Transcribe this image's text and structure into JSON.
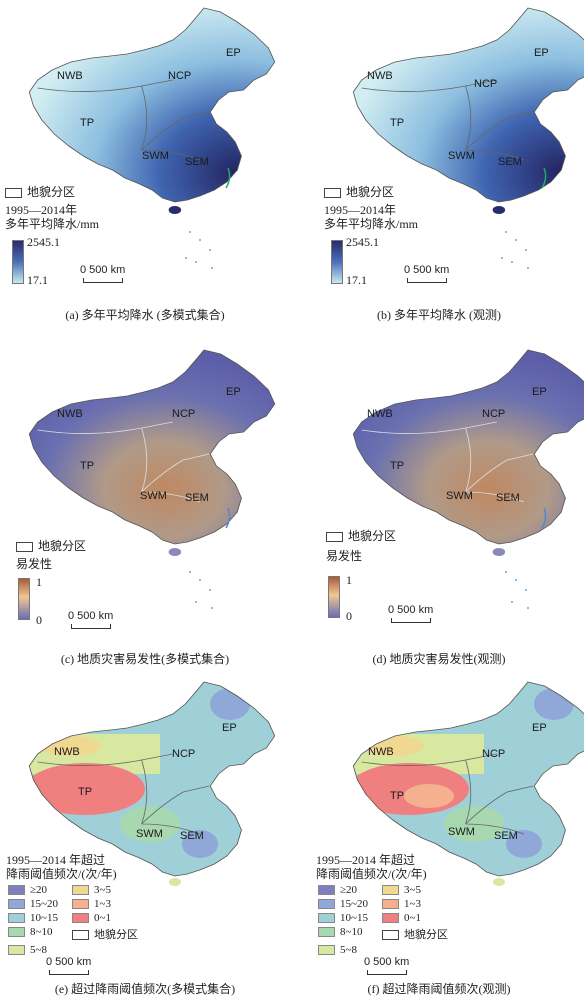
{
  "regions": [
    "NWB",
    "NCP",
    "EP",
    "TP",
    "SWM",
    "SEM"
  ],
  "legend_box_label": "地貌分区",
  "scale_label": "0   500 km",
  "colors": {
    "precip": [
      "#c7e9f0",
      "#6fa8d6",
      "#3b5ba9",
      "#2a2a6e"
    ],
    "suscept": [
      "#6b6bb8",
      "#9a9ac8",
      "#f0c890",
      "#a85a3a"
    ],
    "freq": [
      "#7f7fc0",
      "#8fa8d8",
      "#9fd0d8",
      "#a8d8b0",
      "#d8e8a0",
      "#f0d890",
      "#f5b090",
      "#f08080"
    ]
  },
  "panels": [
    {
      "caption": "(a) 多年平均降水 (多模式集合)",
      "legend_title": "1995—2014年\n多年平均降水/mm",
      "max": "2545.1",
      "min": "17.1"
    },
    {
      "caption": "(b) 多年平均降水 (观测)",
      "legend_title": "1995—2014年\n多年平均降水/mm",
      "max": "2545.1",
      "min": "17.1"
    },
    {
      "caption": "(c) 地质灾害易发性(多模式集合)",
      "legend_title": "易发性",
      "max": "1",
      "min": "0"
    },
    {
      "caption": "(d) 地质灾害易发性(观测)",
      "legend_title": "易发性",
      "max": "1",
      "min": "0"
    },
    {
      "caption": "(e) 超过降雨阈值频次(多模式集合)",
      "legend_title": "1995—2014 年超过\n降雨阈值频次/(次/年)"
    },
    {
      "caption": "(f) 超过降雨阈值频次(观测)",
      "legend_title": "1995—2014 年超过\n降雨阈值频次/(次/年)"
    }
  ],
  "freq_classes": [
    "≥20",
    "3~5",
    "15~20",
    "1~3",
    "10~15",
    "0~1",
    "8~10",
    "地貌分区",
    "5~8"
  ]
}
